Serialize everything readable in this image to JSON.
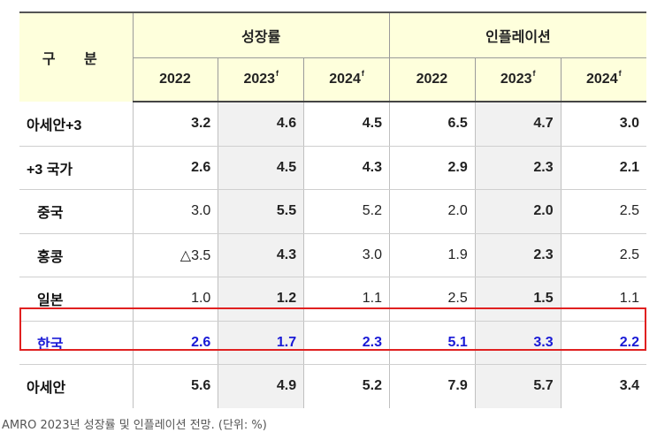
{
  "table": {
    "header_group_label": "구 분",
    "group_growth": "성장률",
    "group_inflation": "인플레이션",
    "years": [
      "2022",
      "2023",
      "2024",
      "2022",
      "2023",
      "2024"
    ],
    "forecast_marks": [
      "",
      "f",
      "f",
      "",
      "f",
      "f"
    ],
    "rows": [
      {
        "label": "아세안+3",
        "values": [
          "3.2",
          "4.6",
          "4.5",
          "6.5",
          "4.7",
          "3.0"
        ]
      },
      {
        "label": "+3 국가",
        "values": [
          "2.6",
          "4.5",
          "4.3",
          "2.9",
          "2.3",
          "2.1"
        ]
      },
      {
        "label": "중국",
        "values": [
          "3.0",
          "5.5",
          "5.2",
          "2.0",
          "2.0",
          "2.5"
        ]
      },
      {
        "label": "홍콩",
        "values": [
          "△3.5",
          "4.3",
          "3.0",
          "1.9",
          "2.3",
          "2.5"
        ]
      },
      {
        "label": "일본",
        "values": [
          "1.0",
          "1.2",
          "1.1",
          "2.5",
          "1.5",
          "1.1"
        ]
      },
      {
        "label": "한국",
        "values": [
          "2.6",
          "1.7",
          "2.3",
          "5.1",
          "3.3",
          "2.2"
        ]
      },
      {
        "label": "아세안",
        "values": [
          "5.6",
          "4.9",
          "5.2",
          "7.9",
          "5.7",
          "3.4"
        ]
      }
    ]
  },
  "caption": "AMRO 2023년 성장률 및 인플레이션 전망. (단위: %)"
}
